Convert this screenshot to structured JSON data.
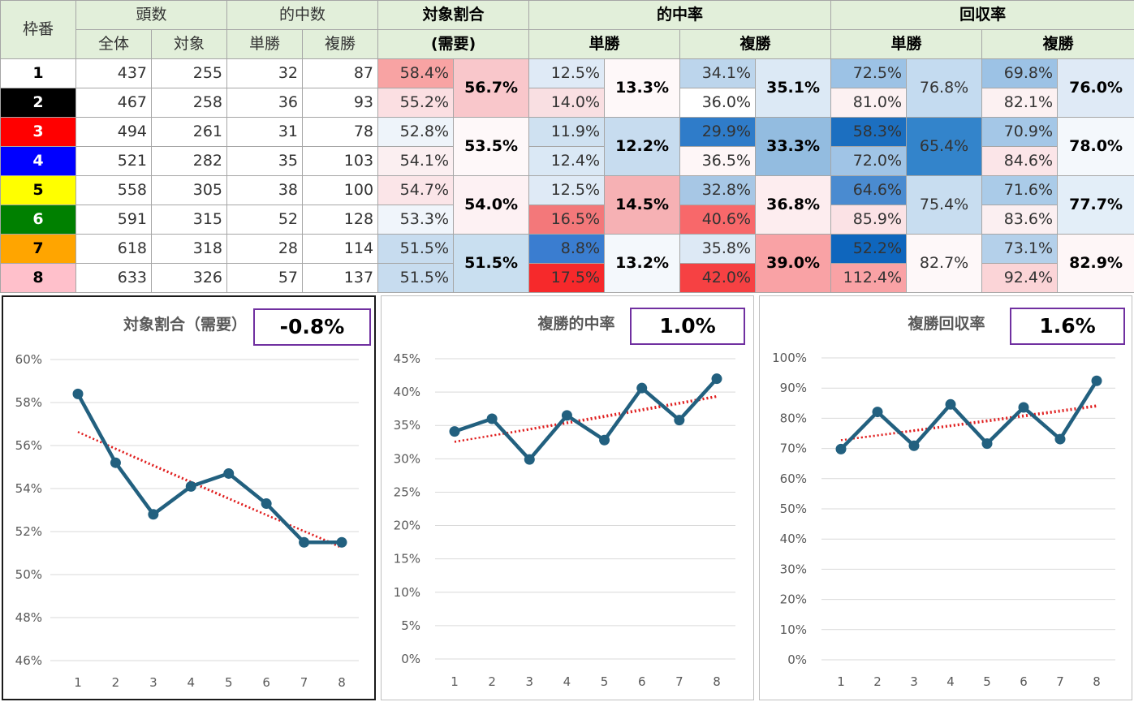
{
  "table": {
    "header": {
      "frame": "枠番",
      "count": "頭数",
      "total": "全体",
      "target": "対象",
      "hits": "的中数",
      "win": "単勝",
      "place": "複勝",
      "ratio_line1": "対象割合",
      "ratio_line2": "(需要)",
      "hitrate": "的中率",
      "recovery": "回収率"
    },
    "rows": [
      {
        "frame": "1",
        "total": "437",
        "target": "255",
        "win_hits": "32",
        "place_hits": "87",
        "ratio": "58.4%",
        "win_rate": "12.5%",
        "place_rate": "34.1%",
        "win_rec": "72.5%",
        "place_rec": "69.8%"
      },
      {
        "frame": "2",
        "total": "467",
        "target": "258",
        "win_hits": "36",
        "place_hits": "93",
        "ratio": "55.2%",
        "win_rate": "14.0%",
        "place_rate": "36.0%",
        "win_rec": "81.0%",
        "place_rec": "82.1%"
      },
      {
        "frame": "3",
        "total": "494",
        "target": "261",
        "win_hits": "31",
        "place_hits": "78",
        "ratio": "52.8%",
        "win_rate": "11.9%",
        "place_rate": "29.9%",
        "win_rec": "58.3%",
        "place_rec": "70.9%"
      },
      {
        "frame": "4",
        "total": "521",
        "target": "282",
        "win_hits": "35",
        "place_hits": "103",
        "ratio": "54.1%",
        "win_rate": "12.4%",
        "place_rate": "36.5%",
        "win_rec": "72.0%",
        "place_rec": "84.6%"
      },
      {
        "frame": "5",
        "total": "558",
        "target": "305",
        "win_hits": "38",
        "place_hits": "100",
        "ratio": "54.7%",
        "win_rate": "12.5%",
        "place_rate": "32.8%",
        "win_rec": "64.6%",
        "place_rec": "71.6%"
      },
      {
        "frame": "6",
        "total": "591",
        "target": "315",
        "win_hits": "52",
        "place_hits": "128",
        "ratio": "53.3%",
        "win_rate": "16.5%",
        "place_rate": "40.6%",
        "win_rec": "85.9%",
        "place_rec": "83.6%"
      },
      {
        "frame": "7",
        "total": "618",
        "target": "318",
        "win_hits": "28",
        "place_hits": "114",
        "ratio": "51.5%",
        "win_rate": "8.8%",
        "place_rate": "35.8%",
        "win_rec": "52.2%",
        "place_rec": "73.1%"
      },
      {
        "frame": "8",
        "total": "633",
        "target": "326",
        "win_hits": "57",
        "place_hits": "137",
        "ratio": "51.5%",
        "win_rate": "17.5%",
        "place_rate": "42.0%",
        "win_rec": "112.4%",
        "place_rec": "92.4%"
      }
    ],
    "pairs": [
      {
        "ratio": "56.7%",
        "win_rate": "13.3%",
        "place_rate": "35.1%",
        "win_rec": "76.8%",
        "place_rec": "76.0%"
      },
      {
        "ratio": "53.5%",
        "win_rate": "12.2%",
        "place_rate": "33.3%",
        "win_rec": "65.4%",
        "place_rec": "78.0%"
      },
      {
        "ratio": "54.0%",
        "win_rate": "14.5%",
        "place_rate": "36.8%",
        "win_rec": "75.4%",
        "place_rec": "77.7%"
      },
      {
        "ratio": "51.5%",
        "win_rate": "13.2%",
        "place_rate": "39.0%",
        "win_rec": "82.7%",
        "place_rec": "82.9%"
      }
    ],
    "frame_colors": [
      {
        "bg": "#ffffff",
        "fg": "#000000"
      },
      {
        "bg": "#000000",
        "fg": "#ffffff"
      },
      {
        "bg": "#ff0000",
        "fg": "#ffffff"
      },
      {
        "bg": "#0000ff",
        "fg": "#ffffff"
      },
      {
        "bg": "#ffff00",
        "fg": "#000000"
      },
      {
        "bg": "#008000",
        "fg": "#ffffff"
      },
      {
        "bg": "#ffa500",
        "fg": "#000000"
      },
      {
        "bg": "#ffc0cb",
        "fg": "#000000"
      }
    ],
    "cell_colors": {
      "ratio": [
        "#f8a3a3",
        "#fbdfe2",
        "#eef4fa",
        "#fbeff1",
        "#fbe5e8",
        "#f0f5fb",
        "#c7dcef",
        "#c7dcef"
      ],
      "ratio_pair": [
        "#f9c7cb",
        "#fef8f9",
        "#fdf1f3",
        "#c9dff0"
      ],
      "win_rate": [
        "#dfeaf6",
        "#f9dfe2",
        "#cfe1f1",
        "#dae8f5",
        "#dfeaf6",
        "#f3787a",
        "#3a7dd0",
        "#f6292b"
      ],
      "win_rate_pair": [
        "#fef8f9",
        "#c7dcef",
        "#f6b1b4",
        "#f4f8fc"
      ],
      "place_rate": [
        "#bcd5ec",
        "#ffffff",
        "#2f7cc9",
        "#fef6f7",
        "#a7c7e5",
        "#f8686a",
        "#dde9f5",
        "#f64143"
      ],
      "place_rate_pair": [
        "#dce9f5",
        "#93bce0",
        "#fdedef",
        "#f9a2a5"
      ],
      "win_rec": [
        "#9cc2e5",
        "#fcf1f2",
        "#1c6fc0",
        "#a0c4e6",
        "#4a8bd0",
        "#fbe2e5",
        "#0f66bd",
        "#f9a2a5"
      ],
      "win_rec_pair": [
        "#c4dbf0",
        "#3384cb",
        "#c8ddf0",
        "#fef8f9"
      ],
      "place_rec": [
        "#9cc2e5",
        "#fcf1f2",
        "#a4c7e7",
        "#fbe5e8",
        "#aacbe8",
        "#fbeff1",
        "#b4d0ea",
        "#fbd4d7"
      ],
      "place_rec_pair": [
        "#dfeaf6",
        "#f4f8fc",
        "#e3eef8",
        "#fef6f7"
      ]
    }
  },
  "chart_data": [
    {
      "type": "line",
      "title": "対象割合（需要）",
      "slope_label": "-0.8%",
      "categories": [
        "1",
        "2",
        "3",
        "4",
        "5",
        "6",
        "7",
        "8"
      ],
      "series": [
        {
          "values": [
            58.4,
            55.2,
            52.8,
            54.1,
            54.7,
            53.3,
            51.5,
            51.5
          ]
        }
      ],
      "trendlines": [
        {
          "type": "linear"
        },
        {
          "type": "exponential"
        }
      ],
      "yticks": [
        "46%",
        "48%",
        "50%",
        "52%",
        "54%",
        "56%",
        "58%",
        "60%"
      ],
      "ylim": [
        46,
        60
      ],
      "grid": true,
      "colors": {
        "line": "#22607f",
        "trend": "#e02020"
      }
    },
    {
      "type": "line",
      "title": "複勝的中率",
      "slope_label": "1.0%",
      "categories": [
        "1",
        "2",
        "3",
        "4",
        "5",
        "6",
        "7",
        "8"
      ],
      "series": [
        {
          "values": [
            34.1,
            36.0,
            29.9,
            36.5,
            32.8,
            40.6,
            35.8,
            42.0
          ]
        }
      ],
      "trendlines": [
        {
          "type": "linear"
        },
        {
          "type": "exponential"
        }
      ],
      "yticks": [
        "0%",
        "5%",
        "10%",
        "15%",
        "20%",
        "25%",
        "30%",
        "35%",
        "40%",
        "45%"
      ],
      "ylim": [
        0,
        45
      ],
      "grid": true,
      "colors": {
        "line": "#22607f",
        "trend": "#e02020"
      }
    },
    {
      "type": "line",
      "title": "複勝回収率",
      "slope_label": "1.6%",
      "categories": [
        "1",
        "2",
        "3",
        "4",
        "5",
        "6",
        "7",
        "8"
      ],
      "series": [
        {
          "values": [
            69.8,
            82.1,
            70.9,
            84.6,
            71.6,
            83.6,
            73.1,
            92.4
          ]
        }
      ],
      "trendlines": [
        {
          "type": "linear"
        },
        {
          "type": "exponential"
        }
      ],
      "yticks": [
        "0%",
        "10%",
        "20%",
        "30%",
        "40%",
        "50%",
        "60%",
        "70%",
        "80%",
        "90%",
        "100%"
      ],
      "ylim": [
        0,
        100
      ],
      "grid": true,
      "colors": {
        "line": "#22607f",
        "trend": "#e02020"
      }
    }
  ]
}
